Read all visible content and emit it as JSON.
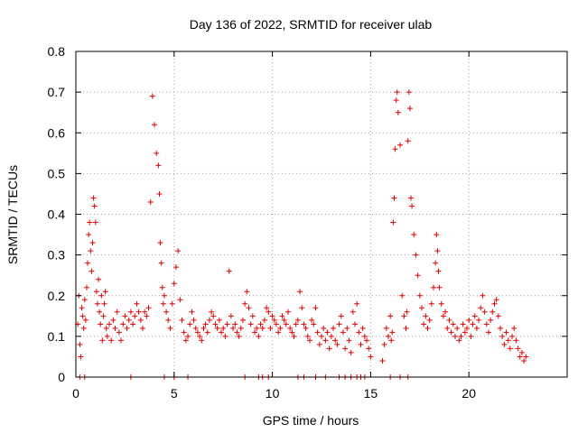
{
  "chart_data": {
    "type": "scatter",
    "title": "Day 136 of 2022, SRMTID for receiver ulab",
    "xlabel": "GPS time / hours",
    "ylabel": "SRMTID / TECUs",
    "xlim": [
      0,
      25
    ],
    "ylim": [
      0,
      0.8
    ],
    "xticks": [
      0,
      5,
      10,
      15,
      20
    ],
    "yticks": [
      0,
      0.1,
      0.2,
      0.3,
      0.4,
      0.5,
      0.6,
      0.7,
      0.8
    ],
    "xtick_labels": [
      "0",
      "5",
      "10",
      "15",
      "20"
    ],
    "ytick_labels": [
      "0",
      "0.1",
      "0.2",
      "0.3",
      "0.4",
      "0.5",
      "0.6",
      "0.7",
      "0.8"
    ],
    "grid": true,
    "marker": "+",
    "color": "#e00000",
    "series": [
      {
        "name": "SRMTID",
        "x": [
          0.1,
          0.15,
          0.2,
          0.25,
          0.3,
          0.35,
          0.4,
          0.45,
          0.5,
          0.55,
          0.6,
          0.65,
          0.7,
          0.75,
          0.8,
          0.85,
          0.9,
          0.95,
          1.0,
          1.05,
          1.1,
          1.15,
          1.2,
          1.25,
          1.3,
          1.35,
          1.4,
          1.45,
          1.5,
          1.55,
          1.6,
          1.7,
          1.8,
          1.9,
          2.0,
          2.1,
          2.2,
          2.3,
          2.4,
          2.5,
          2.6,
          2.7,
          2.8,
          2.9,
          3.0,
          3.1,
          3.2,
          3.3,
          3.4,
          3.5,
          3.6,
          3.7,
          3.8,
          3.9,
          4.0,
          4.1,
          4.2,
          4.25,
          4.3,
          4.35,
          4.4,
          4.45,
          4.5,
          4.6,
          4.7,
          4.8,
          4.9,
          5.0,
          5.1,
          5.2,
          5.3,
          5.4,
          5.5,
          5.6,
          5.7,
          5.8,
          5.9,
          6.0,
          6.1,
          6.2,
          6.3,
          6.4,
          6.5,
          6.6,
          6.7,
          6.8,
          6.9,
          7.0,
          7.1,
          7.2,
          7.3,
          7.4,
          7.5,
          7.6,
          7.7,
          7.8,
          7.9,
          8.0,
          8.1,
          8.2,
          8.3,
          8.4,
          8.5,
          8.6,
          8.7,
          8.8,
          8.9,
          9.0,
          9.1,
          9.2,
          9.3,
          9.4,
          9.5,
          9.6,
          9.7,
          9.8,
          9.9,
          10.0,
          10.1,
          10.2,
          10.3,
          10.4,
          10.5,
          10.6,
          10.7,
          10.8,
          10.9,
          11.0,
          11.1,
          11.2,
          11.3,
          11.4,
          11.5,
          11.6,
          11.7,
          11.8,
          11.9,
          12.0,
          12.1,
          12.2,
          12.3,
          12.4,
          12.5,
          12.6,
          12.7,
          12.8,
          12.9,
          13.0,
          13.1,
          13.2,
          13.3,
          13.4,
          13.5,
          13.6,
          13.7,
          13.8,
          13.9,
          14.0,
          14.1,
          14.2,
          14.3,
          14.4,
          14.5,
          14.6,
          14.7,
          14.8,
          14.9,
          15.0,
          15.6,
          15.7,
          15.8,
          15.9,
          16.0,
          16.05,
          16.1,
          16.15,
          16.2,
          16.25,
          16.3,
          16.35,
          16.4,
          16.5,
          16.6,
          16.7,
          16.8,
          16.85,
          16.9,
          16.95,
          17.0,
          17.05,
          17.1,
          17.2,
          17.3,
          17.4,
          17.5,
          17.6,
          17.7,
          17.8,
          17.9,
          18.0,
          18.1,
          18.2,
          18.3,
          18.35,
          18.4,
          18.45,
          18.5,
          18.6,
          18.7,
          18.8,
          18.9,
          19.0,
          19.1,
          19.2,
          19.3,
          19.4,
          19.5,
          19.6,
          19.7,
          19.8,
          19.9,
          20.0,
          20.1,
          20.2,
          20.3,
          20.4,
          20.5,
          20.6,
          20.7,
          20.8,
          20.9,
          21.0,
          21.1,
          21.2,
          21.3,
          21.4,
          21.5,
          21.6,
          21.7,
          21.8,
          21.9,
          22.0,
          22.1,
          22.2,
          22.3,
          22.4,
          22.5,
          22.6,
          22.7,
          22.8,
          22.9,
          0.2,
          0.45,
          2.8,
          4.5,
          5.0,
          5.7,
          8.6,
          9.3,
          9.5,
          9.8,
          11.3,
          11.6,
          12.2,
          12.7,
          13.4,
          13.7,
          14.0,
          14.3,
          14.5,
          14.7,
          16.0,
          16.5,
          16.9
        ],
        "y": [
          0.13,
          0.2,
          0.08,
          0.05,
          0.17,
          0.15,
          0.12,
          0.19,
          0.14,
          0.22,
          0.28,
          0.35,
          0.38,
          0.31,
          0.26,
          0.33,
          0.44,
          0.42,
          0.38,
          0.21,
          0.18,
          0.24,
          0.16,
          0.13,
          0.2,
          0.09,
          0.15,
          0.18,
          0.21,
          0.12,
          0.1,
          0.13,
          0.09,
          0.14,
          0.12,
          0.16,
          0.11,
          0.09,
          0.13,
          0.15,
          0.12,
          0.14,
          0.16,
          0.13,
          0.15,
          0.18,
          0.16,
          0.14,
          0.12,
          0.16,
          0.15,
          0.17,
          0.43,
          0.69,
          0.62,
          0.55,
          0.52,
          0.45,
          0.33,
          0.28,
          0.22,
          0.18,
          0.2,
          0.16,
          0.14,
          0.12,
          0.18,
          0.23,
          0.27,
          0.31,
          0.19,
          0.14,
          0.11,
          0.09,
          0.1,
          0.13,
          0.16,
          0.14,
          0.12,
          0.11,
          0.1,
          0.09,
          0.12,
          0.13,
          0.11,
          0.14,
          0.16,
          0.15,
          0.13,
          0.12,
          0.14,
          0.11,
          0.12,
          0.1,
          0.13,
          0.26,
          0.15,
          0.12,
          0.13,
          0.11,
          0.1,
          0.12,
          0.14,
          0.18,
          0.21,
          0.17,
          0.13,
          0.15,
          0.11,
          0.12,
          0.1,
          0.13,
          0.12,
          0.14,
          0.17,
          0.16,
          0.12,
          0.15,
          0.14,
          0.13,
          0.11,
          0.12,
          0.15,
          0.14,
          0.13,
          0.16,
          0.12,
          0.11,
          0.1,
          0.13,
          0.14,
          0.21,
          0.17,
          0.13,
          0.12,
          0.1,
          0.09,
          0.14,
          0.13,
          0.17,
          0.11,
          0.08,
          0.1,
          0.12,
          0.09,
          0.11,
          0.07,
          0.1,
          0.12,
          0.09,
          0.08,
          0.13,
          0.15,
          0.11,
          0.07,
          0.12,
          0.09,
          0.06,
          0.16,
          0.13,
          0.18,
          0.11,
          0.08,
          0.12,
          0.1,
          0.09,
          0.07,
          0.05,
          0.04,
          0.08,
          0.12,
          0.1,
          0.15,
          0.09,
          0.11,
          0.38,
          0.44,
          0.56,
          0.68,
          0.7,
          0.65,
          0.57,
          0.2,
          0.15,
          0.12,
          0.16,
          0.58,
          0.7,
          0.66,
          0.44,
          0.42,
          0.35,
          0.3,
          0.25,
          0.2,
          0.17,
          0.13,
          0.15,
          0.12,
          0.14,
          0.18,
          0.22,
          0.28,
          0.35,
          0.31,
          0.26,
          0.22,
          0.18,
          0.15,
          0.16,
          0.12,
          0.14,
          0.11,
          0.13,
          0.1,
          0.12,
          0.09,
          0.1,
          0.13,
          0.11,
          0.12,
          0.14,
          0.1,
          0.13,
          0.15,
          0.12,
          0.14,
          0.17,
          0.2,
          0.16,
          0.13,
          0.11,
          0.14,
          0.16,
          0.18,
          0.19,
          0.15,
          0.12,
          0.1,
          0.08,
          0.11,
          0.09,
          0.07,
          0.1,
          0.12,
          0.09,
          0.07,
          0.05,
          0.06,
          0.04,
          0.05,
          0.0,
          0.0,
          0.0,
          0.0,
          0.0,
          0.0,
          0.0,
          0.0,
          0.0,
          0.0,
          0.0,
          0.0,
          0.0,
          0.0,
          0.0,
          0.0,
          0.0,
          0.0,
          0.0,
          0.0,
          0.0,
          0.0,
          0.0
        ]
      }
    ]
  }
}
